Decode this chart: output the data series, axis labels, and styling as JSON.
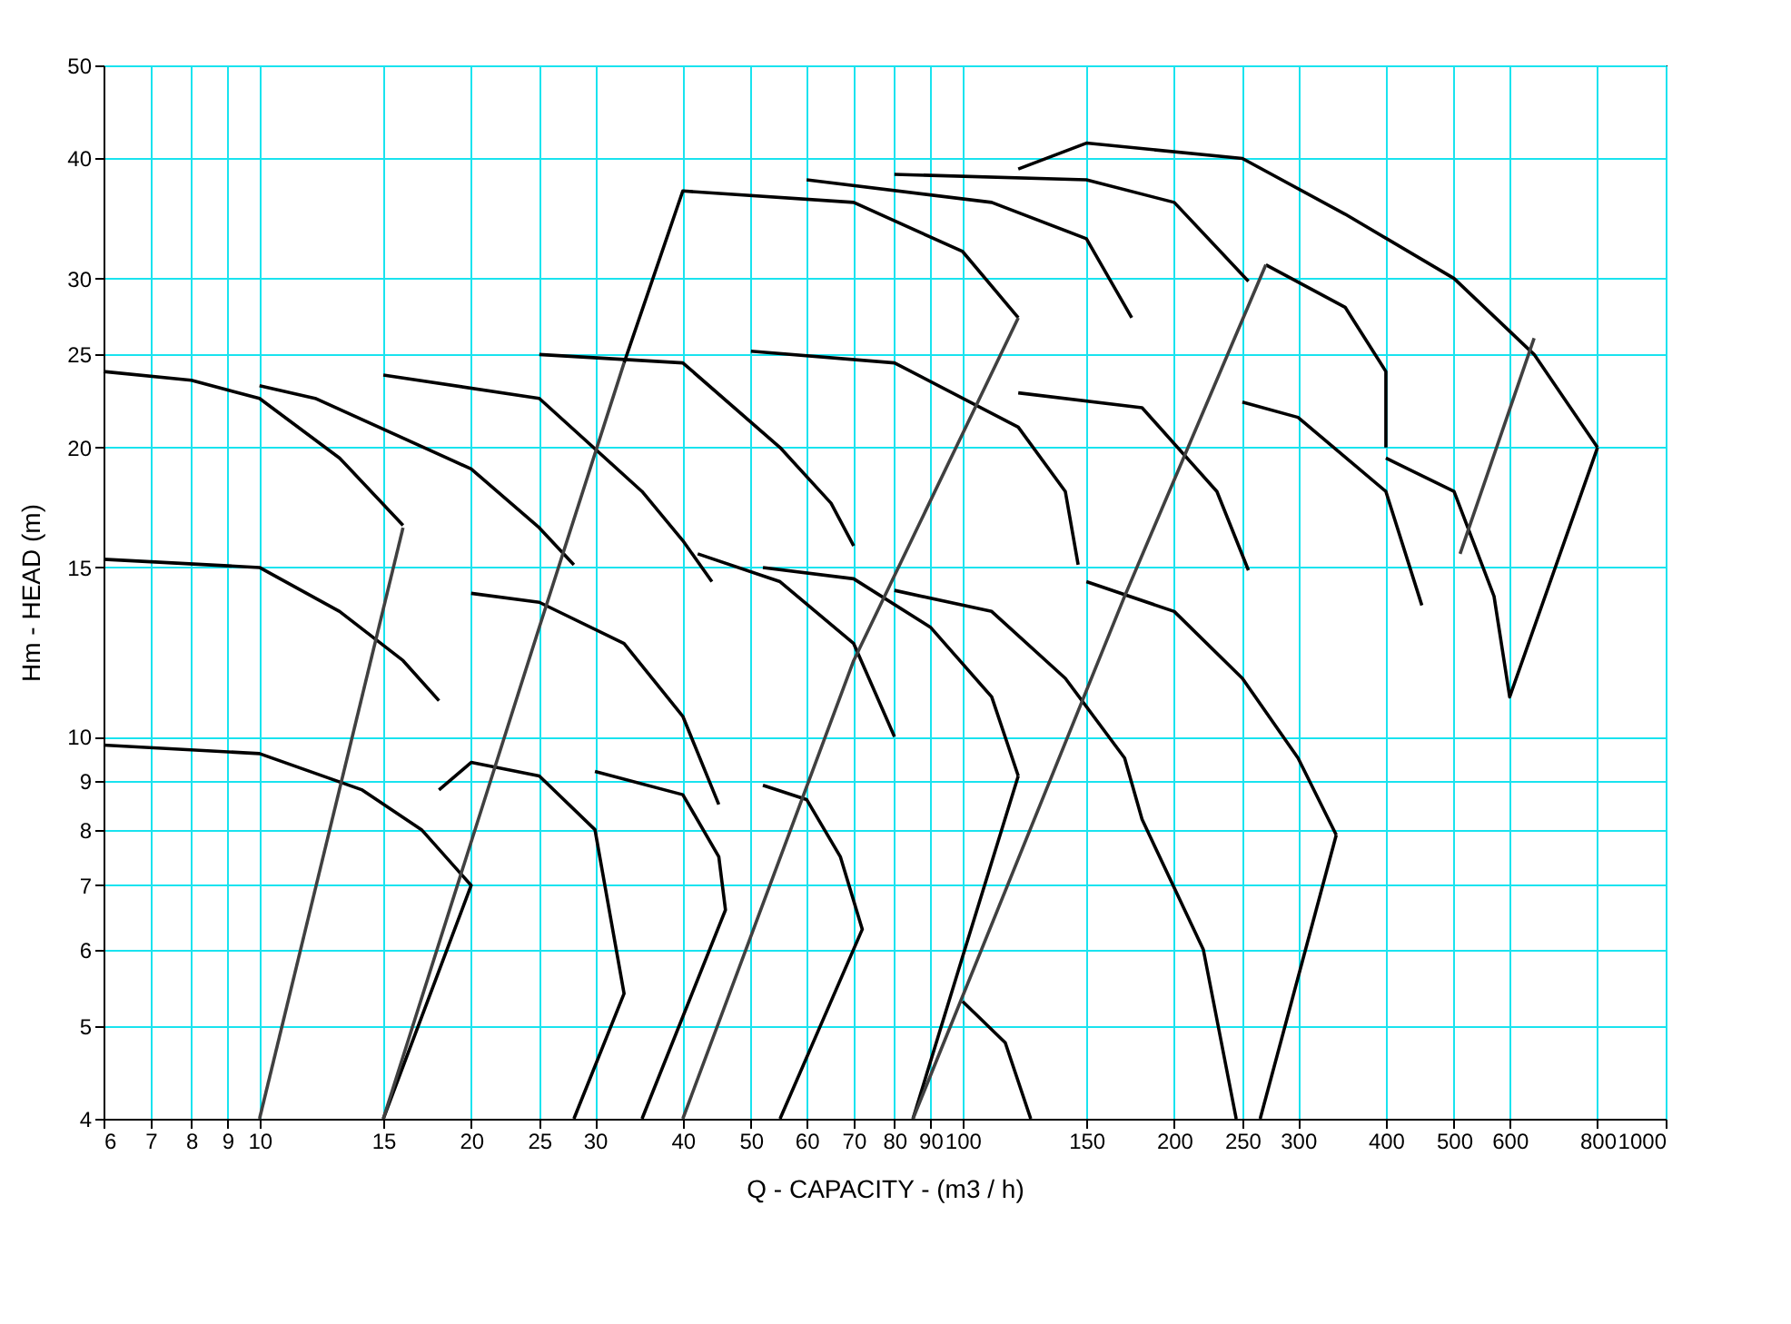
{
  "chart_data": {
    "type": "line",
    "xlabel": "Q - CAPACITY - (m3 / h)",
    "ylabel": "Hm - HEAD (m)",
    "log": "xy",
    "grid": true,
    "legend": false,
    "marker": "none",
    "line_style": "solid",
    "xlim": [
      6,
      1000
    ],
    "ylim": [
      4,
      50
    ],
    "xticks": [
      6,
      7,
      8,
      9,
      10,
      15,
      20,
      25,
      30,
      40,
      50,
      60,
      70,
      80,
      90,
      100,
      150,
      200,
      250,
      300,
      400,
      500,
      600,
      800,
      1000
    ],
    "yticks": [
      4,
      5,
      6,
      7,
      8,
      9,
      10,
      15,
      20,
      25,
      30,
      40,
      50
    ],
    "series": [
      {
        "color": "#000000",
        "x": [
          6,
          10,
          14,
          17,
          20,
          15
        ],
        "values": [
          9.8,
          9.6,
          8.8,
          8.0,
          7.0,
          4
        ]
      },
      {
        "color": "#000000",
        "x": [
          18,
          20,
          25,
          30,
          33,
          28
        ],
        "values": [
          8.8,
          9.4,
          9.1,
          8.0,
          5.4,
          4
        ]
      },
      {
        "color": "#000000",
        "x": [
          30,
          40,
          45,
          46,
          35
        ],
        "values": [
          9.2,
          8.7,
          7.5,
          6.6,
          4
        ]
      },
      {
        "color": "#000000",
        "x": [
          52,
          60,
          67,
          72,
          55
        ],
        "values": [
          8.9,
          8.6,
          7.5,
          6.3,
          4
        ]
      },
      {
        "color": "#000000",
        "x": [
          85,
          100,
          120
        ],
        "values": [
          4,
          5.9,
          9.1
        ]
      },
      {
        "color": "#000000",
        "x": [
          100,
          115,
          125
        ],
        "values": [
          5.3,
          4.8,
          4
        ]
      },
      {
        "color": "#000000",
        "x": [
          265,
          340
        ],
        "values": [
          4,
          7.9
        ]
      },
      {
        "color": "#000000",
        "x": [
          6,
          10,
          13,
          16,
          18
        ],
        "values": [
          15.3,
          15.0,
          13.5,
          12.0,
          10.9
        ]
      },
      {
        "color": "#000000",
        "x": [
          20,
          25,
          33,
          40,
          45
        ],
        "values": [
          14.1,
          13.8,
          12.5,
          10.5,
          8.5
        ]
      },
      {
        "color": "#000000",
        "x": [
          42,
          55,
          70,
          80
        ],
        "values": [
          15.5,
          14.5,
          12.5,
          10.0
        ]
      },
      {
        "color": "#000000",
        "x": [
          52,
          70,
          90,
          110,
          120
        ],
        "values": [
          15.0,
          14.6,
          13.0,
          11.0,
          9.1
        ]
      },
      {
        "color": "#000000",
        "x": [
          80,
          110,
          140,
          170,
          180,
          220,
          245
        ],
        "values": [
          14.2,
          13.5,
          11.5,
          9.5,
          8.2,
          6.0,
          4
        ]
      },
      {
        "color": "#000000",
        "x": [
          150,
          200,
          250,
          300,
          340
        ],
        "values": [
          14.5,
          13.5,
          11.5,
          9.5,
          7.9
        ]
      },
      {
        "color": "#000000",
        "x": [
          6,
          8,
          10,
          13,
          16
        ],
        "values": [
          24,
          23.5,
          22.5,
          19.5,
          16.6
        ]
      },
      {
        "color": "#000000",
        "x": [
          10,
          12,
          20,
          25,
          28
        ],
        "values": [
          23.2,
          22.5,
          19,
          16.5,
          15.1
        ]
      },
      {
        "color": "#000000",
        "x": [
          15,
          25,
          35,
          40,
          44
        ],
        "values": [
          23.8,
          22.5,
          18,
          16,
          14.5
        ]
      },
      {
        "color": "#000000",
        "x": [
          25,
          40,
          55,
          65,
          70
        ],
        "values": [
          25,
          24.5,
          20,
          17.5,
          15.8
        ]
      },
      {
        "color": "#000000",
        "x": [
          50,
          80,
          120,
          140,
          146
        ],
        "values": [
          25.2,
          24.5,
          21,
          18,
          15.1
        ]
      },
      {
        "color": "#000000",
        "x": [
          120,
          180,
          230,
          255
        ],
        "values": [
          22.8,
          22,
          18,
          14.9
        ]
      },
      {
        "color": "#000000",
        "x": [
          250,
          300,
          400,
          450
        ],
        "values": [
          22.3,
          21.5,
          18,
          13.7
        ]
      },
      {
        "color": "#000000",
        "x": [
          400,
          500,
          570,
          600,
          800
        ],
        "values": [
          19.5,
          18,
          14,
          11,
          20
        ]
      },
      {
        "color": "#000000",
        "x": [
          33,
          40,
          70,
          100,
          120
        ],
        "values": [
          24.5,
          37,
          36,
          32,
          27.3
        ]
      },
      {
        "color": "#000000",
        "x": [
          60,
          110,
          150,
          174
        ],
        "values": [
          38,
          36,
          33,
          27.3
        ]
      },
      {
        "color": "#000000",
        "x": [
          80,
          150,
          200,
          255
        ],
        "values": [
          38.5,
          38,
          36,
          29.8
        ]
      },
      {
        "color": "#000000",
        "x": [
          270,
          350,
          400,
          400
        ],
        "values": [
          31,
          28,
          24,
          20
        ]
      },
      {
        "color": "#000000",
        "x": [
          120,
          150,
          250,
          350,
          500,
          650,
          800
        ],
        "values": [
          39,
          41.5,
          40,
          35,
          30,
          25,
          20
        ]
      },
      {
        "color": "#404040",
        "x": [
          10,
          16
        ],
        "values": [
          4,
          16.5
        ]
      },
      {
        "color": "#404040",
        "x": [
          15,
          25,
          33
        ],
        "values": [
          4,
          13,
          24.5
        ]
      },
      {
        "color": "#404040",
        "x": [
          40,
          70,
          120
        ],
        "values": [
          4,
          12,
          27.3
        ]
      },
      {
        "color": "#404040",
        "x": [
          85,
          170,
          270
        ],
        "values": [
          4,
          14,
          31
        ]
      },
      {
        "color": "#404040",
        "x": [
          510,
          650
        ],
        "values": [
          15.5,
          26
        ]
      }
    ]
  }
}
